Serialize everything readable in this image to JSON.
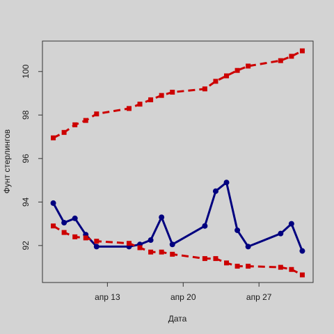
{
  "chart_data": {
    "type": "line",
    "title": "",
    "xlabel": "Дата",
    "ylabel": "Фунт стерлингов",
    "xlim": [
      "2020-04-08",
      "2020-05-01"
    ],
    "ylim": [
      90.3,
      101.4
    ],
    "grid": false,
    "legend": "none",
    "x_ticks": [
      {
        "date": "2020-04-13",
        "label": "апр 13"
      },
      {
        "date": "2020-04-20",
        "label": "апр 20"
      },
      {
        "date": "2020-04-27",
        "label": "апр 27"
      }
    ],
    "y_ticks": [
      {
        "value": 92,
        "label": "92"
      },
      {
        "value": 94,
        "label": "94"
      },
      {
        "value": 96,
        "label": "96"
      },
      {
        "value": 98,
        "label": "98"
      },
      {
        "value": 100,
        "label": "100"
      }
    ],
    "series": [
      {
        "color": "#cc0000",
        "line_style": "dashed",
        "marker": "square",
        "x": [
          "2020-04-08",
          "2020-04-09",
          "2020-04-10",
          "2020-04-11",
          "2020-04-12",
          "2020-04-15",
          "2020-04-16",
          "2020-04-17",
          "2020-04-18",
          "2020-04-19",
          "2020-04-22",
          "2020-04-23",
          "2020-04-24",
          "2020-04-25",
          "2020-04-26",
          "2020-04-29",
          "2020-04-30",
          "2020-05-01"
        ],
        "values": [
          96.95,
          97.2,
          97.55,
          97.75,
          98.05,
          98.3,
          98.5,
          98.7,
          98.9,
          99.05,
          99.2,
          99.55,
          99.8,
          100.05,
          100.25,
          100.5,
          100.7,
          100.95
        ]
      },
      {
        "color": "#00007f",
        "line_style": "solid",
        "marker": "circle",
        "x": [
          "2020-04-08",
          "2020-04-09",
          "2020-04-10",
          "2020-04-11",
          "2020-04-12",
          "2020-04-15",
          "2020-04-16",
          "2020-04-17",
          "2020-04-18",
          "2020-04-19",
          "2020-04-22",
          "2020-04-23",
          "2020-04-24",
          "2020-04-25",
          "2020-04-26",
          "2020-04-29",
          "2020-04-30",
          "2020-05-01"
        ],
        "values": [
          93.95,
          93.05,
          93.25,
          92.5,
          91.95,
          91.95,
          92.05,
          92.25,
          93.3,
          92.05,
          92.9,
          94.5,
          94.9,
          92.7,
          91.95,
          92.55,
          93.0,
          91.75
        ]
      },
      {
        "color": "#cc0000",
        "line_style": "dashed",
        "marker": "square",
        "x": [
          "2020-04-08",
          "2020-04-09",
          "2020-04-10",
          "2020-04-11",
          "2020-04-12",
          "2020-04-15",
          "2020-04-16",
          "2020-04-17",
          "2020-04-18",
          "2020-04-19",
          "2020-04-22",
          "2020-04-23",
          "2020-04-24",
          "2020-04-25",
          "2020-04-26",
          "2020-04-29",
          "2020-04-30",
          "2020-05-01"
        ],
        "values": [
          92.9,
          92.6,
          92.4,
          92.35,
          92.2,
          92.1,
          91.9,
          91.7,
          91.7,
          91.6,
          91.4,
          91.4,
          91.2,
          91.05,
          91.05,
          91.0,
          90.9,
          90.65
        ]
      }
    ]
  }
}
